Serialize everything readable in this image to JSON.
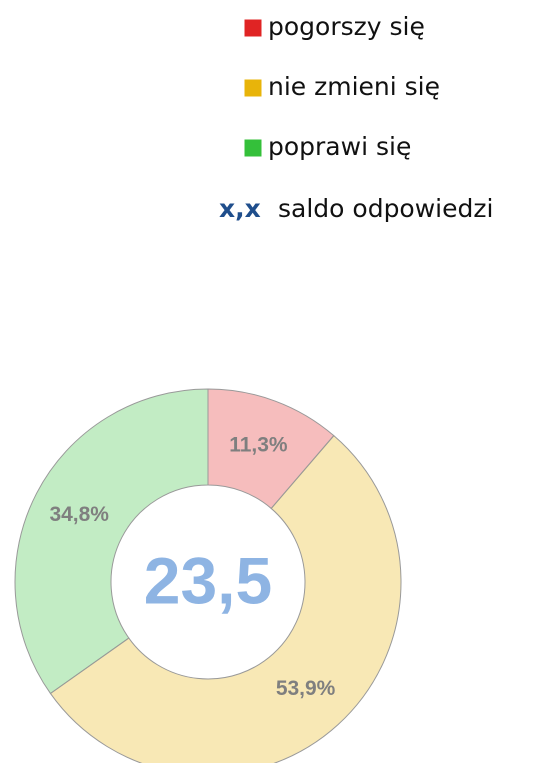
{
  "chart_data": {
    "type": "donut",
    "categories": [
      "pogorszy się",
      "nie zmieni się",
      "poprawi się"
    ],
    "values": [
      11.3,
      53.9,
      34.8
    ],
    "value_labels": [
      "11,3%",
      "53,9%",
      "34,8%"
    ],
    "colors": [
      "#e02424",
      "#e8b40a",
      "#34c03a"
    ],
    "legend_note": {
      "symbol": "x,x",
      "text": "saldo odpowiedzi"
    },
    "balance": {
      "value": 23.5,
      "label": "23,5"
    }
  }
}
